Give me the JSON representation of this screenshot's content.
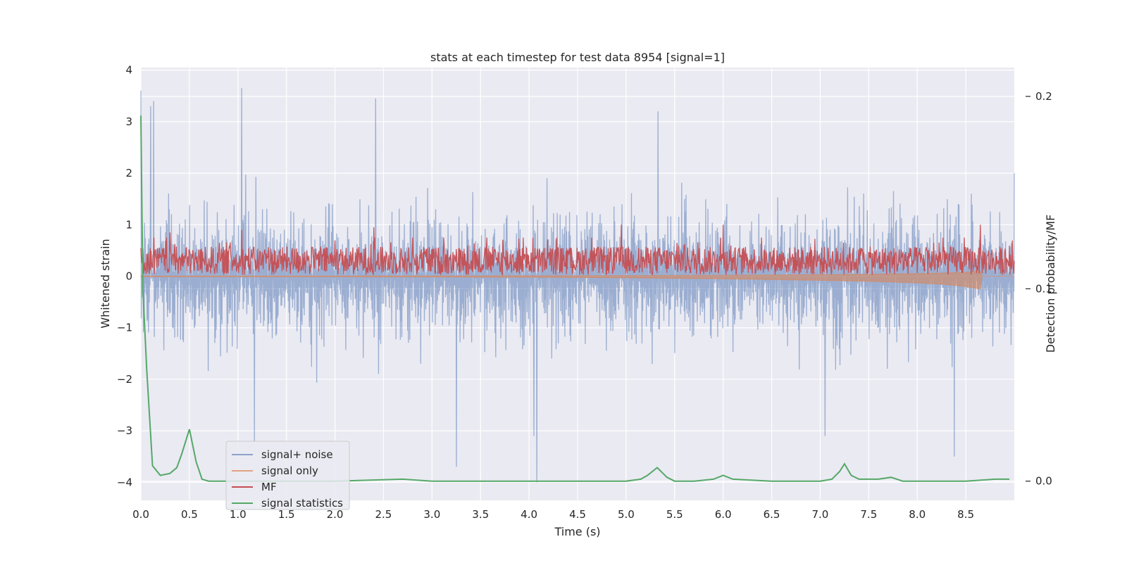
{
  "chart_data": {
    "type": "line",
    "title": "stats at each timestep for test data 8954 [signal=1]",
    "xlabel": "Time (s)",
    "ylabel": "Whitened strain",
    "y2label": "Detection probability/MF",
    "xlim": [
      0.0,
      9.0
    ],
    "ylim": [
      -4.35,
      4.05
    ],
    "y2lim": [
      -0.01,
      0.215
    ],
    "x_ticks": [
      0.0,
      0.5,
      1.0,
      1.5,
      2.0,
      2.5,
      3.0,
      3.5,
      4.0,
      4.5,
      5.0,
      5.5,
      6.0,
      6.5,
      7.0,
      7.5,
      8.0,
      8.5
    ],
    "x_tick_labels": [
      "0.0",
      "0.5",
      "1.0",
      "1.5",
      "2.0",
      "2.5",
      "3.0",
      "3.5",
      "4.0",
      "4.5",
      "5.0",
      "5.5",
      "6.0",
      "6.5",
      "7.0",
      "7.5",
      "8.0",
      "8.5"
    ],
    "y_ticks": [
      4,
      3,
      2,
      1,
      0,
      -1,
      -2,
      -3,
      -4
    ],
    "y_tick_labels": [
      "4",
      "3",
      "2",
      "1",
      "0",
      "−1",
      "−2",
      "−3",
      "−4"
    ],
    "y2_ticks": [
      0.2,
      0.1,
      0.0
    ],
    "y2_tick_labels": [
      "0.2",
      "0.1",
      "0.0"
    ],
    "grid": true,
    "legend_position": "bottom-left",
    "series": [
      {
        "name": "signal+ noise",
        "axis": "left",
        "color": "#4c72b0",
        "style": "dense noise, approx. ±1.3 typical, peaks to about ±3.6",
        "x": [
          0.0,
          0.1,
          0.13,
          1.04,
          1.17,
          2.42,
          3.25,
          4.05,
          4.08,
          5.33,
          7.05,
          8.38,
          9.0
        ],
        "y": [
          3.6,
          3.3,
          3.4,
          3.65,
          -3.2,
          3.45,
          -3.7,
          -3.1,
          -4.0,
          3.2,
          -3.1,
          -3.5,
          2.0
        ]
      },
      {
        "name": "signal only",
        "axis": "left",
        "color": "#dd8452",
        "x": [
          0.0,
          1.0,
          2.0,
          3.0,
          4.0,
          5.0,
          6.0,
          6.5,
          7.0,
          7.5,
          8.0,
          8.3,
          8.5,
          8.65,
          8.67,
          9.0
        ],
        "amplitude": [
          0.01,
          0.01,
          0.01,
          0.015,
          0.02,
          0.03,
          0.05,
          0.065,
          0.08,
          0.1,
          0.13,
          0.16,
          0.2,
          0.25,
          0.0,
          0.0
        ]
      },
      {
        "name": "MF",
        "axis": "left",
        "color": "#c44e52",
        "style": "fluctuates mostly between 0.0 and 0.7",
        "x": [
          0.0,
          0.3,
          1.04,
          2.4,
          4.95,
          6.0,
          8.65,
          9.0
        ],
        "y": [
          0.55,
          0.85,
          0.9,
          0.95,
          1.0,
          1.0,
          1.0,
          0.3
        ]
      },
      {
        "name": "signal statistics",
        "axis": "right",
        "color": "#55a868",
        "x": [
          0.0,
          0.02,
          0.06,
          0.12,
          0.2,
          0.3,
          0.37,
          0.42,
          0.5,
          0.57,
          0.63,
          0.7,
          1.0,
          2.0,
          2.7,
          3.0,
          4.0,
          5.0,
          5.15,
          5.22,
          5.32,
          5.42,
          5.5,
          5.7,
          5.9,
          6.0,
          6.1,
          6.5,
          7.0,
          7.12,
          7.2,
          7.25,
          7.32,
          7.4,
          7.6,
          7.73,
          7.85,
          8.0,
          8.5,
          8.8,
          8.95
        ],
        "y": [
          0.19,
          0.1,
          0.058,
          0.008,
          0.003,
          0.004,
          0.007,
          0.014,
          0.027,
          0.01,
          0.001,
          0.0,
          0.0,
          0.0,
          0.001,
          0.0,
          0.0,
          0.0,
          0.001,
          0.003,
          0.007,
          0.002,
          0.0,
          0.0,
          0.001,
          0.003,
          0.001,
          0.0,
          0.0,
          0.001,
          0.005,
          0.009,
          0.003,
          0.001,
          0.001,
          0.002,
          0.0,
          0.0,
          0.0,
          0.001,
          0.001
        ]
      }
    ]
  }
}
